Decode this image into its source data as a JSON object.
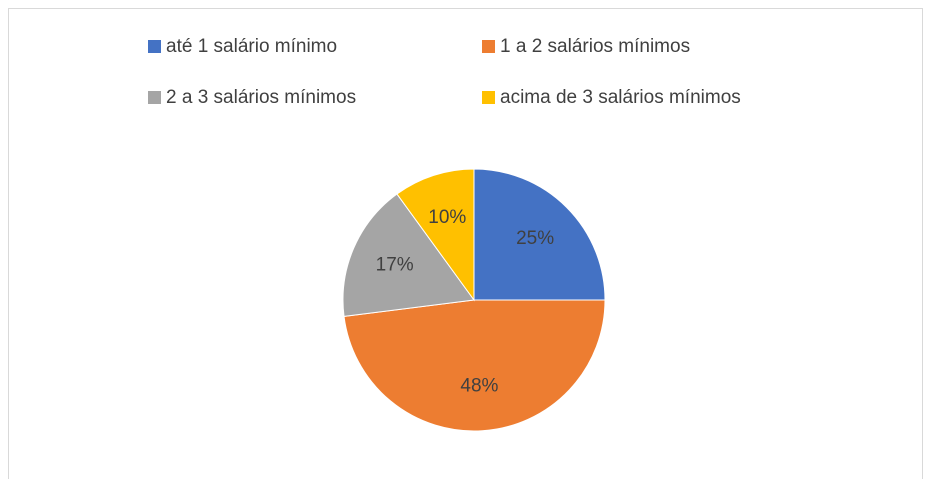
{
  "chart_data": {
    "type": "pie",
    "categories": [
      "até 1 salário mínimo",
      "1 a 2 salários mínimos",
      "2 a 3 salários mínimos",
      "acima de 3 salários mínimos"
    ],
    "values": [
      25,
      48,
      17,
      10
    ],
    "value_labels": [
      "25%",
      "48%",
      "17%",
      "10%"
    ],
    "colors": [
      "#4472c4",
      "#ed7d31",
      "#a5a5a5",
      "#ffc000"
    ],
    "legend": "top"
  }
}
